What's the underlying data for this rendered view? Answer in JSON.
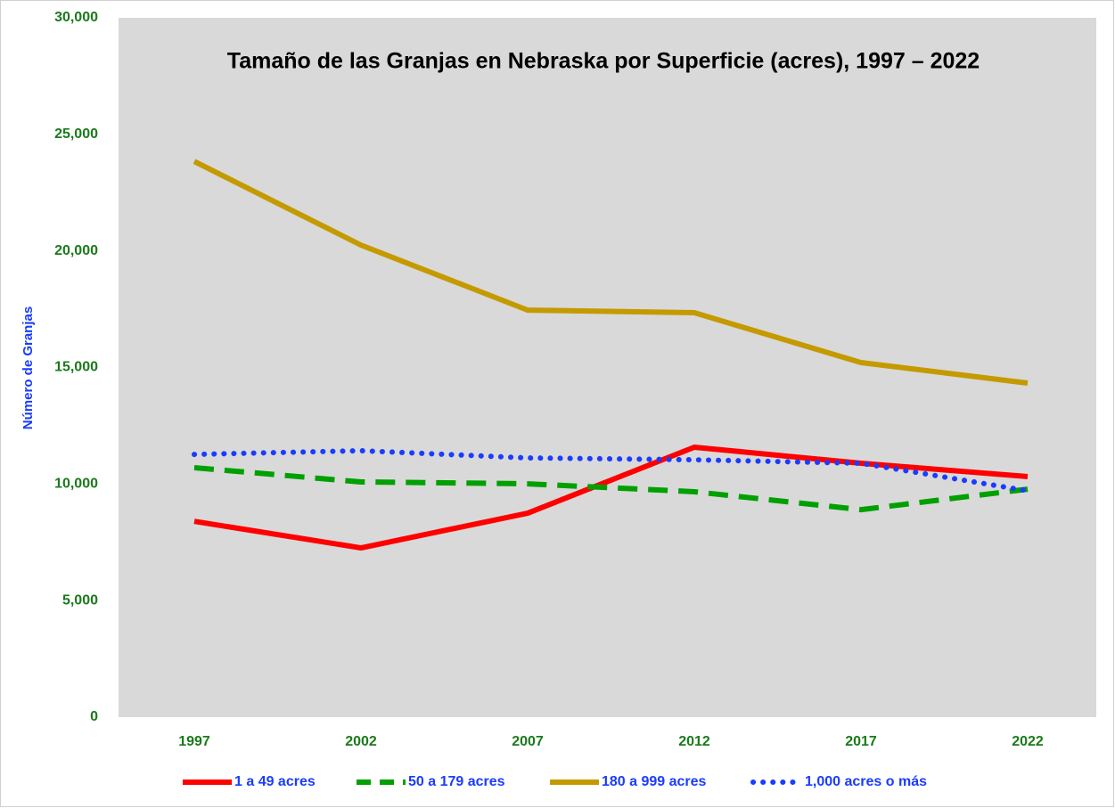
{
  "chart_data": {
    "type": "line",
    "title": "Tamaño de las Granjas en Nebraska por Superficie (acres), 1997 – 2022",
    "y_label": "Número de Granjas",
    "categories": [
      "1997",
      "2002",
      "2007",
      "2012",
      "2017",
      "2022"
    ],
    "series": [
      {
        "name": "1 a 49 acres",
        "color": "#ff0000",
        "style": "solid",
        "values": [
          8400,
          7260,
          8750,
          11580,
          10890,
          10320
        ]
      },
      {
        "name": "50 a 179 acres",
        "color": "#00a000",
        "style": "dashed",
        "values": [
          10700,
          10090,
          10010,
          9670,
          8900,
          9780
        ]
      },
      {
        "name": "180 a 999 acres",
        "color": "#c49a00",
        "style": "solid",
        "values": [
          23840,
          20250,
          17460,
          17350,
          15210,
          14330
        ]
      },
      {
        "name": "1,000 acres o más",
        "color": "#1a3cff",
        "style": "dotted",
        "values": [
          11270,
          11430,
          11120,
          11040,
          10890,
          9710
        ]
      }
    ],
    "ylim": [
      0,
      30000
    ],
    "yticks": [
      0,
      {
        "value": 5000,
        "label": "5,000"
      },
      {
        "value": 10000,
        "label": "10,000"
      },
      {
        "value": 15000,
        "label": "15,000"
      },
      {
        "value": 20000,
        "label": "20,000"
      },
      {
        "value": 25000,
        "label": "25,000"
      },
      {
        "value": 30000,
        "label": "30,000"
      }
    ],
    "grid": false,
    "legend": "bottom"
  }
}
